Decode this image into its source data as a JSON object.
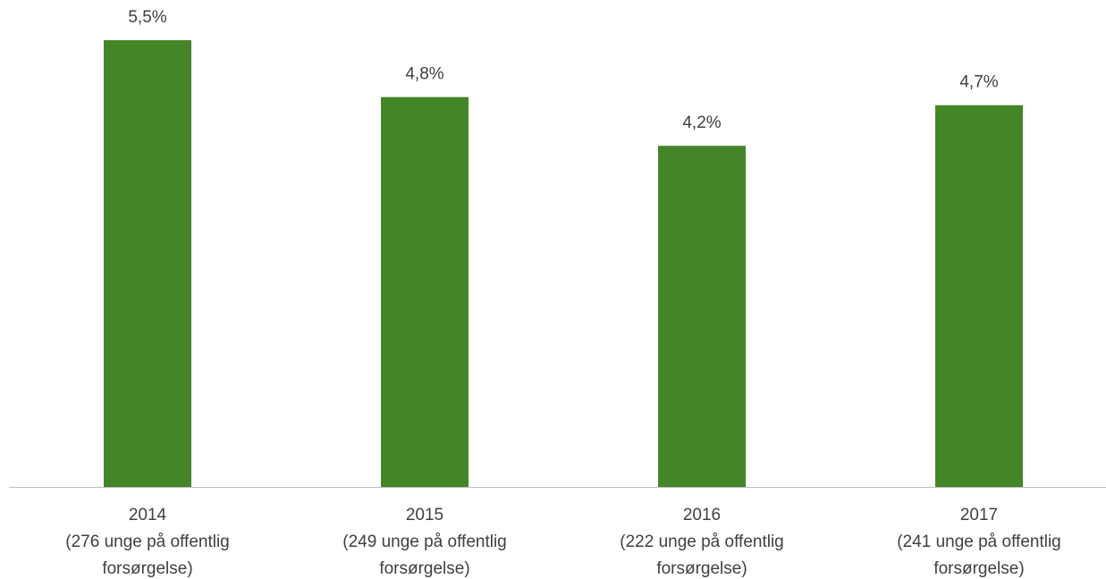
{
  "chart_data": {
    "type": "bar",
    "categories": [
      [
        "2014",
        "(276 unge på offentlig",
        "forsørgelse)"
      ],
      [
        "2015",
        "(249 unge på offentlig",
        "forsørgelse)"
      ],
      [
        "2016",
        "(222 unge på offentlig",
        "forsørgelse)"
      ],
      [
        "2017",
        "(241 unge på offentlig",
        "forsørgelse)"
      ]
    ],
    "values": [
      5.5,
      4.8,
      4.2,
      4.7
    ],
    "value_labels": [
      "5,5%",
      "4,8%",
      "4,2%",
      "4,7%"
    ],
    "color": "#448528"
  }
}
